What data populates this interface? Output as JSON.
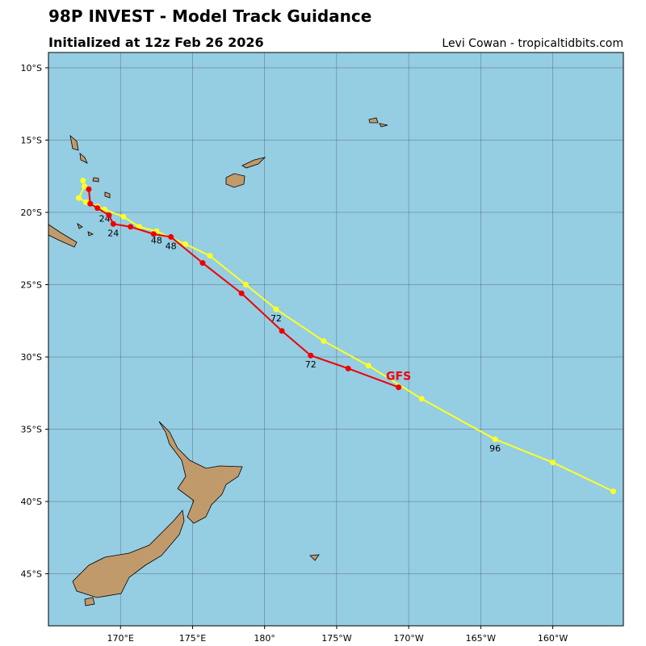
{
  "header": {
    "title": "98P INVEST - Model Track Guidance",
    "subtitle": "Initialized at 12z Feb 26 2026",
    "credit": "Levi Cowan - tropicaltidbits.com"
  },
  "map": {
    "xlim": [
      165,
      204.9
    ],
    "ylim": [
      -8.94,
      -48.6
    ],
    "xticks": [
      {
        "value": 170,
        "label": "170°E"
      },
      {
        "value": 175,
        "label": "175°E"
      },
      {
        "value": 180,
        "label": "180°"
      },
      {
        "value": 185,
        "label": "175°W"
      },
      {
        "value": 190,
        "label": "170°W"
      },
      {
        "value": 195,
        "label": "165°W"
      },
      {
        "value": 200,
        "label": "160°W"
      }
    ],
    "yticks": [
      {
        "value": -10,
        "label": "10°S"
      },
      {
        "value": -15,
        "label": "15°S"
      },
      {
        "value": -20,
        "label": "20°S"
      },
      {
        "value": -25,
        "label": "25°S"
      },
      {
        "value": -30,
        "label": "30°S"
      },
      {
        "value": -35,
        "label": "35°S"
      },
      {
        "value": -40,
        "label": "40°S"
      },
      {
        "value": -45,
        "label": "45°S"
      }
    ],
    "tracks": [
      {
        "color": "#ffff22",
        "points": [
          {
            "lon": 167.4,
            "lat": -17.8
          },
          {
            "lon": 167.5,
            "lat": -18.2
          },
          {
            "lon": 167.1,
            "lat": -19.0
          },
          {
            "lon": 167.6,
            "lat": -19.3
          },
          {
            "lon": 168.4,
            "lat": -19.6
          },
          {
            "lon": 168.9,
            "lat": -19.8,
            "label": "24"
          },
          {
            "lon": 170.2,
            "lat": -20.3
          },
          {
            "lon": 171.3,
            "lat": -21.0
          },
          {
            "lon": 172.5,
            "lat": -21.3,
            "label": "48"
          },
          {
            "lon": 174.5,
            "lat": -22.2
          },
          {
            "lon": 176.2,
            "lat": -23.0
          },
          {
            "lon": 178.7,
            "lat": -25.0
          },
          {
            "lon": 180.8,
            "lat": -26.7,
            "label": "72"
          },
          {
            "lon": 184.1,
            "lat": -28.9
          },
          {
            "lon": 187.2,
            "lat": -30.6
          },
          {
            "lon": 190.9,
            "lat": -32.9
          },
          {
            "lon": 196.0,
            "lat": -35.7,
            "label": "96"
          },
          {
            "lon": 200.0,
            "lat": -37.3
          },
          {
            "lon": 204.2,
            "lat": -39.3
          }
        ]
      },
      {
        "name": "GFS",
        "color": "#ee0000",
        "points": [
          {
            "lon": 167.8,
            "lat": -18.4
          },
          {
            "lon": 167.9,
            "lat": -19.4
          },
          {
            "lon": 168.4,
            "lat": -19.7
          },
          {
            "lon": 169.2,
            "lat": -20.2
          },
          {
            "lon": 169.5,
            "lat": -20.8,
            "label": "24"
          },
          {
            "lon": 170.7,
            "lat": -21.0
          },
          {
            "lon": 172.3,
            "lat": -21.5
          },
          {
            "lon": 173.5,
            "lat": -21.7,
            "label": "48"
          },
          {
            "lon": 175.7,
            "lat": -23.5
          },
          {
            "lon": 178.4,
            "lat": -25.6
          },
          {
            "lon": 181.2,
            "lat": -28.2
          },
          {
            "lon": 183.2,
            "lat": -29.9,
            "label": "72"
          },
          {
            "lon": 185.8,
            "lat": -30.8
          },
          {
            "lon": 189.3,
            "lat": -32.1
          }
        ]
      }
    ]
  }
}
